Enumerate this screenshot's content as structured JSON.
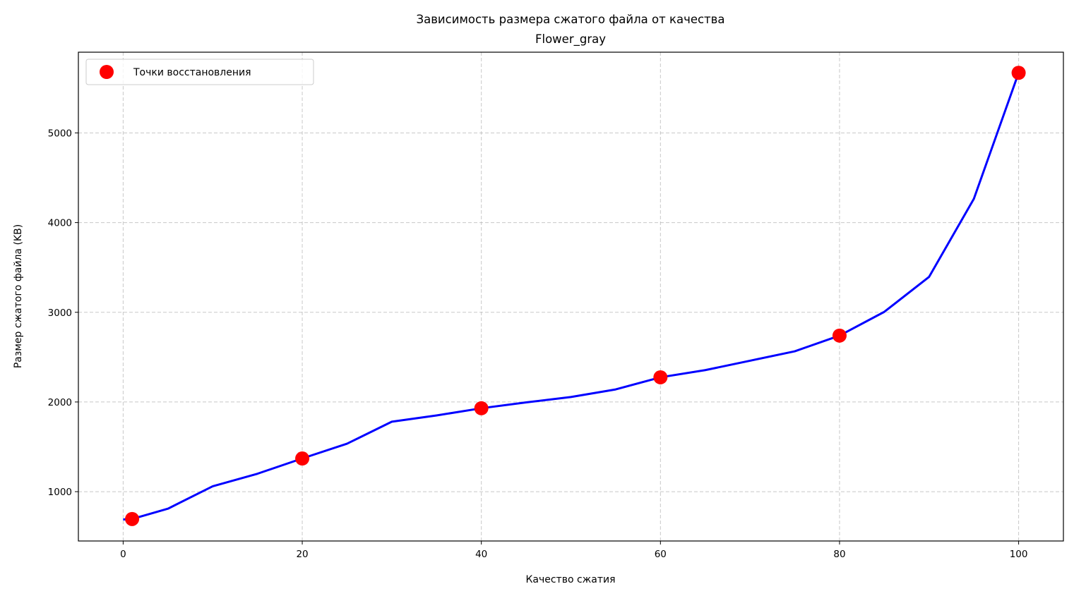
{
  "chart_data": {
    "type": "line",
    "title": "Зависимость размера сжатого файла от качества",
    "subtitle": "Flower_gray",
    "xlabel": "Качество сжатия",
    "ylabel": "Размер сжатого файла (KB)",
    "xlim": [
      -5,
      105
    ],
    "ylim": [
      450,
      5900
    ],
    "xticks": [
      0,
      20,
      40,
      60,
      80,
      100
    ],
    "yticks": [
      1000,
      2000,
      3000,
      4000,
      5000
    ],
    "grid": true,
    "legend_position": "top-left",
    "series": [
      {
        "color": "#0000ff",
        "style": "line",
        "x": [
          0,
          1,
          5,
          10,
          15,
          20,
          25,
          30,
          35,
          40,
          45,
          50,
          55,
          60,
          65,
          70,
          75,
          80,
          85,
          90,
          95,
          100
        ],
        "y": [
          690,
          695,
          810,
          1060,
          1200,
          1370,
          1535,
          1780,
          1850,
          1930,
          1995,
          2055,
          2140,
          2275,
          2355,
          2460,
          2565,
          2740,
          3005,
          3395,
          4265,
          5670
        ]
      },
      {
        "name": "Точки восстановления",
        "color": "#ff0000",
        "style": "markers",
        "x": [
          1,
          20,
          40,
          60,
          80,
          100
        ],
        "y": [
          695,
          1370,
          1930,
          2275,
          2740,
          5670
        ]
      }
    ]
  }
}
